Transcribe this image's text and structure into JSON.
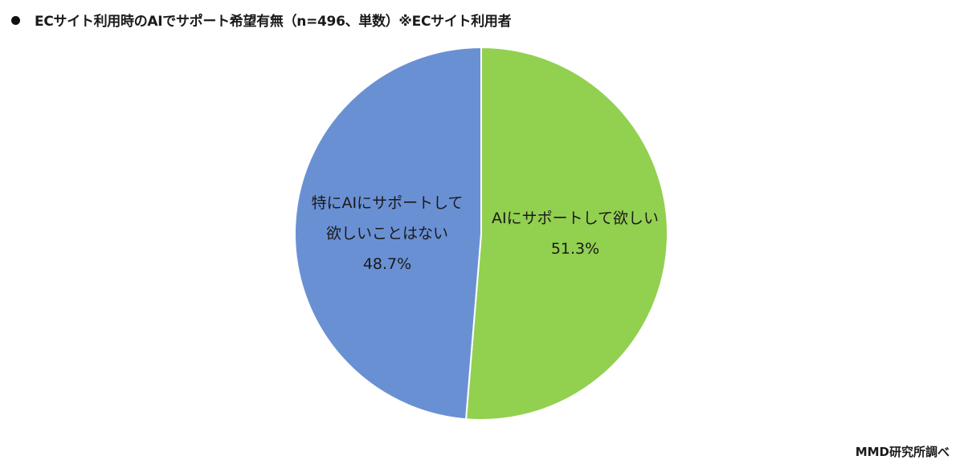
{
  "chart_data": {
    "type": "pie",
    "title": "ECサイト利用時のAIでサポート希望有無（n=496、単数）※ECサイト利用者",
    "start": "top",
    "direction": "clockwise",
    "slices": [
      {
        "name": "AIにサポートして欲しい",
        "label_lines": [
          "AIにサポートして欲しい"
        ],
        "value": 51.3,
        "value_label": "51.3%",
        "color": "#92d050"
      },
      {
        "name": "特にAIにサポートして欲しいことはない",
        "label_lines": [
          "特にAIにサポートして",
          "欲しいことはない"
        ],
        "value": 48.7,
        "value_label": "48.7%",
        "color": "#6a90d4"
      }
    ],
    "source": "MMD研究所調べ"
  }
}
